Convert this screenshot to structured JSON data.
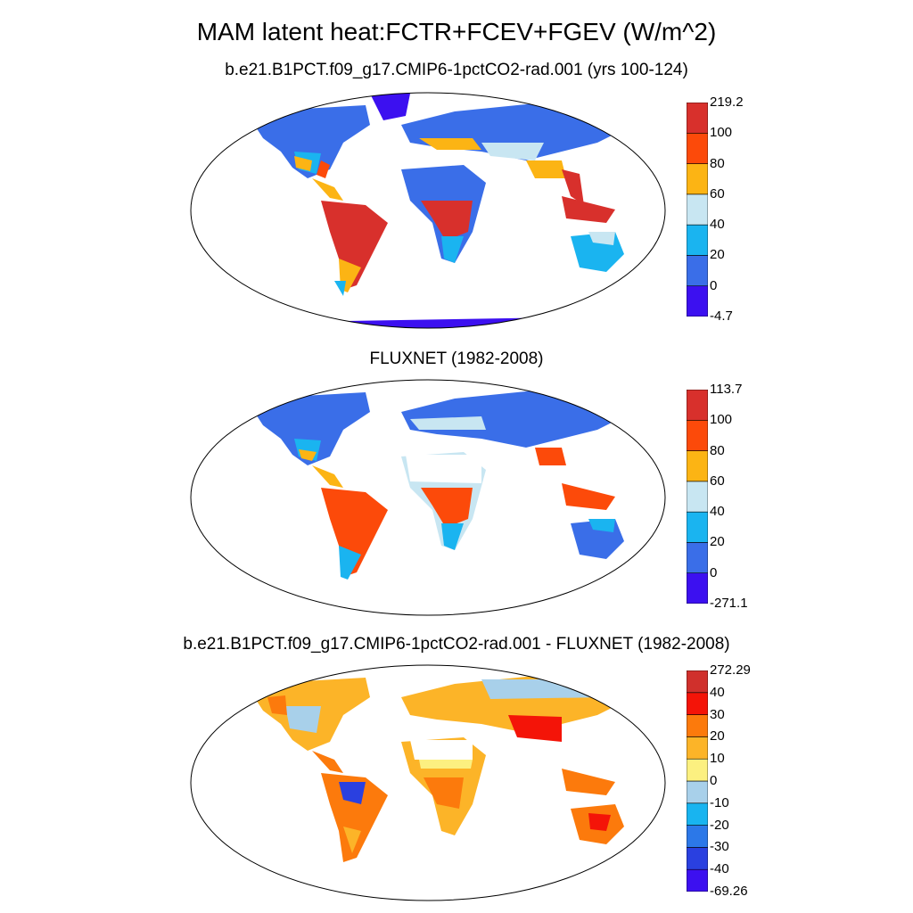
{
  "title": "MAM latent heat:FCTR+FCEV+FGEV (W/m^2)",
  "panels": [
    {
      "title": "b.e21.B1PCT.f09_g17.CMIP6-1pctCO2-rad.001 (yrs 100-124)",
      "colorbar": {
        "colors": [
          "#3c10f0",
          "#3a6ee8",
          "#1ab4f0",
          "#c8e6f2",
          "#fcb414",
          "#fc4a0a",
          "#d8302c"
        ],
        "labels": [
          "-4.7",
          "0",
          "20",
          "40",
          "60",
          "80",
          "100",
          "219.2"
        ]
      }
    },
    {
      "title": "FLUXNET (1982-2008)",
      "colorbar": {
        "colors": [
          "#3c10f0",
          "#3a6ee8",
          "#1ab4f0",
          "#c8e6f2",
          "#fcb414",
          "#fc4a0a",
          "#d8302c"
        ],
        "labels": [
          "-271.1",
          "0",
          "20",
          "40",
          "60",
          "80",
          "100",
          "113.7"
        ]
      }
    },
    {
      "title": "b.e21.B1PCT.f09_g17.CMIP6-1pctCO2-rad.001 - FLUXNET (1982-2008)",
      "colorbar": {
        "colors": [
          "#3c10f0",
          "#2a40e0",
          "#2c78e8",
          "#18b4f0",
          "#a8d0ea",
          "#fcf080",
          "#fcb428",
          "#fc7a0c",
          "#f41408",
          "#d0302c"
        ],
        "labels": [
          "-69.26",
          "-40",
          "-30",
          "-20",
          "-10",
          "0",
          "10",
          "20",
          "30",
          "40",
          "272.29"
        ]
      }
    }
  ]
}
